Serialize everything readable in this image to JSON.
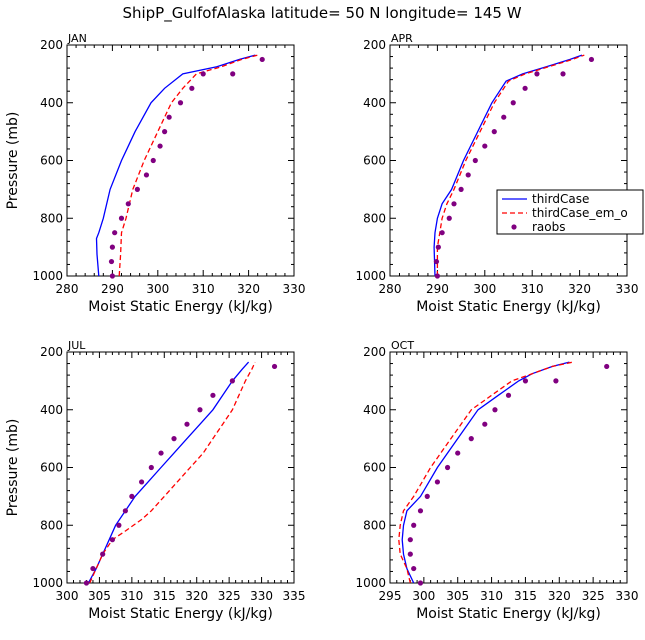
{
  "figure": {
    "title": "ShipP_GulfofAlaska  latitude= 50 N longitude= 145 W"
  },
  "legend": {
    "panel_index": 1,
    "entries": [
      {
        "label": "thirdCase",
        "style": "solid-line",
        "color": "#0000ff"
      },
      {
        "label": "thirdCase_em_o",
        "style": "dashed-line",
        "color": "#ff0000"
      },
      {
        "label": "raobs",
        "style": "dot",
        "color": "#800080"
      }
    ]
  },
  "chart_data": [
    {
      "type": "line",
      "title": "JAN",
      "xlabel": "Moist Static Energy (kJ/kg)",
      "ylabel": "Pressure (mb)",
      "xlim": [
        280,
        330
      ],
      "xticks": [
        280,
        290,
        300,
        310,
        320,
        330
      ],
      "ylim": [
        1000,
        200
      ],
      "yticks": [
        200,
        400,
        600,
        800,
        1000
      ],
      "y_inverted": true,
      "grid": false,
      "series": [
        {
          "name": "thirdCase",
          "kind": "line",
          "color": "#0000ff",
          "dash": false,
          "points": [
            [
              287.0,
              1000
            ],
            [
              286.6,
              925
            ],
            [
              286.5,
              870
            ],
            [
              287.0,
              850
            ],
            [
              288.0,
              800
            ],
            [
              289.5,
              700
            ],
            [
              292.0,
              600
            ],
            [
              295.0,
              500
            ],
            [
              298.5,
              400
            ],
            [
              301.5,
              350
            ],
            [
              305.5,
              300
            ],
            [
              313.0,
              275
            ],
            [
              318.0,
              250
            ],
            [
              321.5,
              235
            ]
          ]
        },
        {
          "name": "thirdCase_em_o",
          "kind": "line",
          "color": "#ff0000",
          "dash": true,
          "points": [
            [
              291.5,
              1000
            ],
            [
              291.8,
              925
            ],
            [
              292.0,
              850
            ],
            [
              293.0,
              800
            ],
            [
              294.5,
              700
            ],
            [
              297.0,
              600
            ],
            [
              300.0,
              500
            ],
            [
              303.0,
              400
            ],
            [
              305.5,
              350
            ],
            [
              308.5,
              300
            ],
            [
              314.0,
              275
            ],
            [
              318.5,
              250
            ],
            [
              322.0,
              235
            ]
          ]
        },
        {
          "name": "raobs",
          "kind": "scatter",
          "color": "#800080",
          "points": [
            [
              290.0,
              1000
            ],
            [
              289.8,
              950
            ],
            [
              290.0,
              900
            ],
            [
              290.5,
              850
            ],
            [
              292.0,
              800
            ],
            [
              293.5,
              750
            ],
            [
              295.5,
              700
            ],
            [
              297.5,
              650
            ],
            [
              299.0,
              600
            ],
            [
              300.5,
              550
            ],
            [
              301.5,
              500
            ],
            [
              302.5,
              450
            ],
            [
              305.0,
              400
            ],
            [
              307.5,
              350
            ],
            [
              310.0,
              300
            ],
            [
              316.5,
              300
            ],
            [
              323.0,
              250
            ]
          ]
        }
      ]
    },
    {
      "type": "line",
      "title": "APR",
      "xlabel": "Moist Static Energy (kJ/kg)",
      "ylabel": "",
      "xlim": [
        280,
        330
      ],
      "xticks": [
        280,
        290,
        300,
        310,
        320,
        330
      ],
      "ylim": [
        1000,
        200
      ],
      "yticks": [
        200,
        400,
        600,
        800,
        1000
      ],
      "y_inverted": true,
      "grid": false,
      "series": [
        {
          "name": "thirdCase",
          "kind": "line",
          "color": "#0000ff",
          "dash": false,
          "points": [
            [
              289.5,
              1000
            ],
            [
              289.3,
              900
            ],
            [
              289.5,
              850
            ],
            [
              290.0,
              800
            ],
            [
              291.0,
              750
            ],
            [
              293.0,
              700
            ],
            [
              295.5,
              600
            ],
            [
              298.5,
              500
            ],
            [
              301.5,
              400
            ],
            [
              304.5,
              325
            ],
            [
              308.0,
              300
            ],
            [
              313.0,
              275
            ],
            [
              318.0,
              250
            ],
            [
              320.5,
              235
            ]
          ]
        },
        {
          "name": "thirdCase_em_o",
          "kind": "line",
          "color": "#ff0000",
          "dash": true,
          "points": [
            [
              290.0,
              1000
            ],
            [
              290.0,
              900
            ],
            [
              290.5,
              850
            ],
            [
              291.0,
              800
            ],
            [
              292.0,
              750
            ],
            [
              293.5,
              700
            ],
            [
              296.0,
              600
            ],
            [
              299.0,
              500
            ],
            [
              302.0,
              400
            ],
            [
              305.0,
              325
            ],
            [
              308.5,
              300
            ],
            [
              313.5,
              275
            ],
            [
              318.5,
              250
            ],
            [
              321.0,
              235
            ]
          ]
        },
        {
          "name": "raobs",
          "kind": "scatter",
          "color": "#800080",
          "points": [
            [
              290.0,
              1000
            ],
            [
              289.8,
              950
            ],
            [
              290.2,
              900
            ],
            [
              291.0,
              850
            ],
            [
              292.5,
              800
            ],
            [
              293.5,
              750
            ],
            [
              295.0,
              700
            ],
            [
              296.5,
              650
            ],
            [
              298.0,
              600
            ],
            [
              300.0,
              550
            ],
            [
              302.0,
              500
            ],
            [
              304.0,
              450
            ],
            [
              306.0,
              400
            ],
            [
              308.5,
              350
            ],
            [
              311.0,
              300
            ],
            [
              316.5,
              300
            ],
            [
              322.5,
              250
            ]
          ]
        }
      ]
    },
    {
      "type": "line",
      "title": "JUL",
      "xlabel": "Moist Static Energy (kJ/kg)",
      "ylabel": "Pressure (mb)",
      "xlim": [
        300,
        335
      ],
      "xticks": [
        300,
        305,
        310,
        315,
        320,
        325,
        330,
        335
      ],
      "ylim": [
        1000,
        200
      ],
      "yticks": [
        200,
        400,
        600,
        800,
        1000
      ],
      "y_inverted": true,
      "grid": false,
      "series": [
        {
          "name": "thirdCase",
          "kind": "line",
          "color": "#0000ff",
          "dash": false,
          "points": [
            [
              303.3,
              1000
            ],
            [
              304.5,
              950
            ],
            [
              305.5,
              900
            ],
            [
              306.5,
              850
            ],
            [
              307.5,
              800
            ],
            [
              309.0,
              750
            ],
            [
              310.5,
              700
            ],
            [
              312.5,
              650
            ],
            [
              314.5,
              600
            ],
            [
              316.5,
              550
            ],
            [
              318.5,
              500
            ],
            [
              320.5,
              450
            ],
            [
              322.5,
              400
            ],
            [
              324.0,
              350
            ],
            [
              325.5,
              300
            ],
            [
              327.0,
              260
            ],
            [
              328.0,
              235
            ]
          ]
        },
        {
          "name": "thirdCase_em_o",
          "kind": "line",
          "color": "#ff0000",
          "dash": true,
          "points": [
            [
              303.5,
              1000
            ],
            [
              304.5,
              950
            ],
            [
              305.5,
              900
            ],
            [
              307.0,
              850
            ],
            [
              309.0,
              820
            ],
            [
              311.5,
              780
            ],
            [
              313.0,
              750
            ],
            [
              315.0,
              700
            ],
            [
              317.0,
              650
            ],
            [
              319.0,
              600
            ],
            [
              321.0,
              550
            ],
            [
              322.5,
              500
            ],
            [
              324.0,
              450
            ],
            [
              325.5,
              400
            ],
            [
              326.5,
              350
            ],
            [
              327.5,
              300
            ],
            [
              328.5,
              260
            ],
            [
              329.0,
              235
            ]
          ]
        },
        {
          "name": "raobs",
          "kind": "scatter",
          "color": "#800080",
          "points": [
            [
              303.0,
              1000
            ],
            [
              304.0,
              950
            ],
            [
              305.5,
              900
            ],
            [
              307.0,
              850
            ],
            [
              308.0,
              800
            ],
            [
              309.0,
              750
            ],
            [
              310.0,
              700
            ],
            [
              311.5,
              650
            ],
            [
              313.0,
              600
            ],
            [
              314.5,
              550
            ],
            [
              316.5,
              500
            ],
            [
              318.5,
              450
            ],
            [
              320.5,
              400
            ],
            [
              322.5,
              350
            ],
            [
              325.5,
              300
            ],
            [
              332.0,
              250
            ]
          ]
        }
      ]
    },
    {
      "type": "line",
      "title": "OCT",
      "xlabel": "Moist Static Energy (kJ/kg)",
      "ylabel": "",
      "xlim": [
        295,
        330
      ],
      "xticks": [
        295,
        300,
        305,
        310,
        315,
        320,
        325,
        330
      ],
      "ylim": [
        1000,
        200
      ],
      "yticks": [
        200,
        400,
        600,
        800,
        1000
      ],
      "y_inverted": true,
      "grid": false,
      "series": [
        {
          "name": "thirdCase",
          "kind": "line",
          "color": "#0000ff",
          "dash": false,
          "points": [
            [
              298.5,
              1000
            ],
            [
              297.5,
              950
            ],
            [
              297.0,
              900
            ],
            [
              296.8,
              850
            ],
            [
              297.0,
              800
            ],
            [
              297.5,
              750
            ],
            [
              299.5,
              700
            ],
            [
              302.0,
              600
            ],
            [
              305.0,
              500
            ],
            [
              308.0,
              400
            ],
            [
              311.0,
              350
            ],
            [
              314.0,
              300
            ],
            [
              316.0,
              275
            ],
            [
              319.0,
              250
            ],
            [
              321.5,
              235
            ]
          ]
        },
        {
          "name": "thirdCase_em_o",
          "kind": "line",
          "color": "#ff0000",
          "dash": true,
          "points": [
            [
              298.0,
              1000
            ],
            [
              297.5,
              950
            ],
            [
              296.5,
              900
            ],
            [
              296.3,
              850
            ],
            [
              296.5,
              800
            ],
            [
              297.0,
              750
            ],
            [
              298.5,
              700
            ],
            [
              301.0,
              600
            ],
            [
              304.0,
              500
            ],
            [
              307.0,
              400
            ],
            [
              310.0,
              350
            ],
            [
              313.0,
              300
            ],
            [
              316.0,
              275
            ],
            [
              319.0,
              250
            ],
            [
              322.0,
              235
            ]
          ]
        },
        {
          "name": "raobs",
          "kind": "scatter",
          "color": "#800080",
          "points": [
            [
              299.5,
              1000
            ],
            [
              298.5,
              950
            ],
            [
              298.0,
              900
            ],
            [
              298.0,
              850
            ],
            [
              298.5,
              800
            ],
            [
              299.5,
              750
            ],
            [
              300.5,
              700
            ],
            [
              302.0,
              650
            ],
            [
              303.5,
              600
            ],
            [
              305.0,
              550
            ],
            [
              307.0,
              500
            ],
            [
              309.0,
              450
            ],
            [
              310.5,
              400
            ],
            [
              312.5,
              350
            ],
            [
              315.0,
              300
            ],
            [
              319.5,
              300
            ],
            [
              327.0,
              250
            ]
          ]
        }
      ]
    }
  ]
}
